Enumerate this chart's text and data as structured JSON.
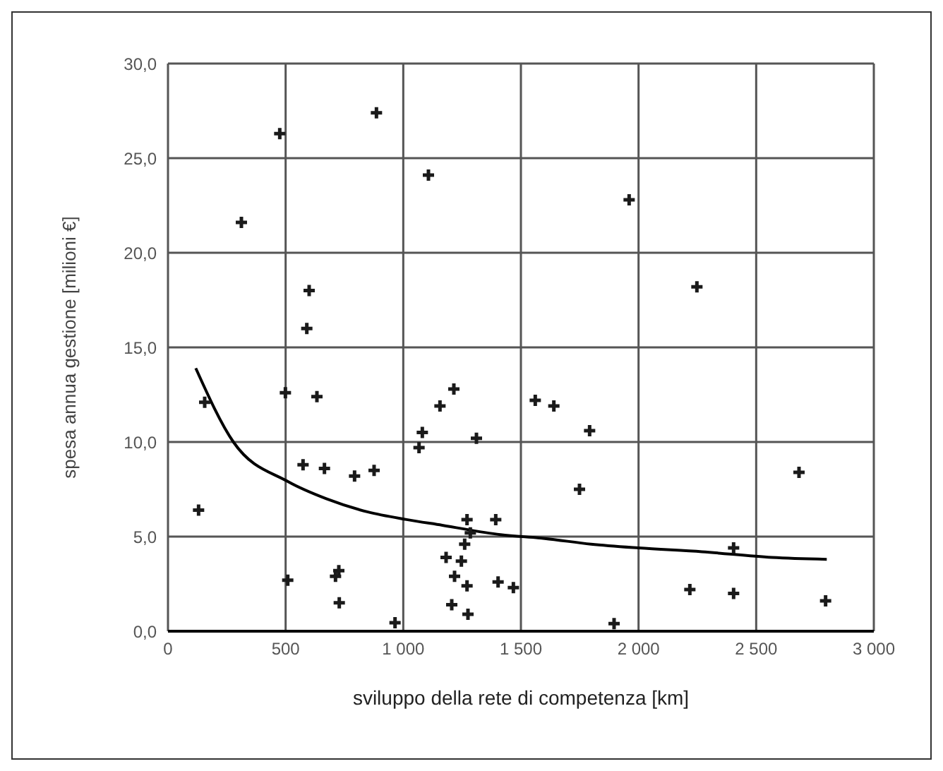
{
  "chart_data": {
    "type": "scatter",
    "xlabel": "sviluppo della rete di competenza [km]",
    "ylabel": "spesa annua gestione [milioni €]",
    "xlim": [
      0,
      3000
    ],
    "ylim": [
      0,
      30
    ],
    "xticks": [
      {
        "value": 0,
        "label": "0"
      },
      {
        "value": 500,
        "label": "500"
      },
      {
        "value": 1000,
        "label": "1 000"
      },
      {
        "value": 1500,
        "label": "1 500"
      },
      {
        "value": 2000,
        "label": "2 000"
      },
      {
        "value": 2500,
        "label": "2 500"
      },
      {
        "value": 3000,
        "label": "3 000"
      }
    ],
    "yticks": [
      {
        "value": 0,
        "label": "0,0"
      },
      {
        "value": 5,
        "label": "5,0"
      },
      {
        "value": 10,
        "label": "10,0"
      },
      {
        "value": 15,
        "label": "15,0"
      },
      {
        "value": 20,
        "label": "20,0"
      },
      {
        "value": 25,
        "label": "25,0"
      },
      {
        "value": 30,
        "label": "30,0"
      }
    ],
    "grid": true,
    "legend": false,
    "series": [
      {
        "marker": "cross",
        "color": "#1a1a1a",
        "x": [
          886,
          475,
          1107,
          312,
          600,
          590,
          1960,
          2248,
          156,
          499,
          633,
          1215,
          1156,
          1081,
          1067,
          1311,
          130,
          574,
          665,
          793,
          876,
          509,
          726,
          712,
          728,
          965,
          1271,
          1285,
          1261,
          1182,
          1247,
          1218,
          1271,
          1206,
          1275,
          1561,
          1640,
          1792,
          1749,
          2682,
          1393,
          1403,
          1468,
          2404,
          2218,
          2404,
          2795,
          1896
        ],
        "values": [
          27.4,
          26.3,
          24.1,
          21.6,
          18.0,
          16.0,
          22.8,
          18.2,
          12.1,
          12.6,
          12.4,
          12.8,
          11.9,
          10.5,
          9.7,
          10.2,
          6.4,
          8.8,
          8.6,
          8.2,
          8.5,
          2.7,
          3.2,
          2.9,
          1.5,
          0.45,
          5.9,
          5.2,
          4.6,
          3.9,
          3.7,
          2.9,
          2.4,
          1.4,
          0.9,
          12.2,
          11.9,
          10.6,
          7.5,
          8.4,
          5.9,
          2.6,
          2.3,
          4.4,
          2.2,
          2.0,
          1.6,
          0.4
        ]
      },
      {
        "type": "line",
        "marker": "none",
        "color": "#000000",
        "x": [
          118,
          278,
          511,
          673,
          850,
          1014,
          1166,
          1413,
          1601,
          1798,
          2000,
          2270,
          2567,
          2800
        ],
        "values": [
          13.9,
          10.0,
          7.9,
          7.0,
          6.3,
          5.9,
          5.6,
          5.1,
          4.9,
          4.6,
          4.4,
          4.2,
          3.9,
          3.8
        ]
      }
    ]
  }
}
